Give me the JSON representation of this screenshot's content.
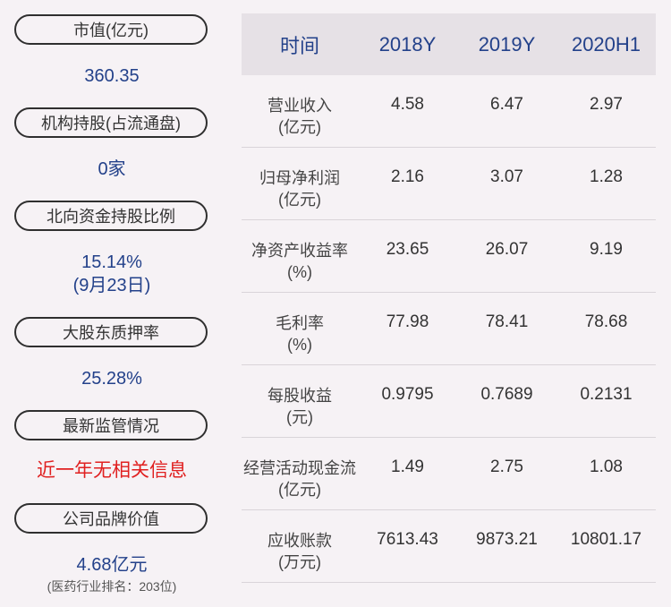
{
  "left_panel": {
    "items": [
      {
        "label": "市值(亿元)",
        "value": "360.35"
      },
      {
        "label": "机构持股(占流通盘)",
        "value": "0家"
      },
      {
        "label": "北向资金持股比例",
        "value": "15.14%",
        "value2": "(9月23日)"
      },
      {
        "label": "大股东质押率",
        "value": "25.28%"
      },
      {
        "label": "最新监管情况",
        "value": "近一年无相关信息"
      },
      {
        "label": "公司品牌价值",
        "value": "4.68亿元",
        "note": "(医药行业排名：203位)"
      }
    ]
  },
  "table": {
    "headers": [
      "时间",
      "2018Y",
      "2019Y",
      "2020H1"
    ],
    "rows": [
      {
        "label": "营业收入",
        "unit": "(亿元)",
        "values": [
          "4.58",
          "6.47",
          "2.97"
        ]
      },
      {
        "label": "归母净利润",
        "unit": "(亿元)",
        "values": [
          "2.16",
          "3.07",
          "1.28"
        ]
      },
      {
        "label": "净资产收益率",
        "unit": "(%)",
        "values": [
          "23.65",
          "26.07",
          "9.19"
        ]
      },
      {
        "label": "毛利率",
        "unit": "(%)",
        "values": [
          "77.98",
          "78.41",
          "78.68"
        ]
      },
      {
        "label": "每股收益",
        "unit": "(元)",
        "values": [
          "0.9795",
          "0.7689",
          "0.2131"
        ]
      },
      {
        "label": "经营活动现金流",
        "unit": "(亿元)",
        "values": [
          "1.49",
          "2.75",
          "1.08"
        ]
      },
      {
        "label": "应收账款",
        "unit": "(万元)",
        "values": [
          "7613.43",
          "9873.21",
          "10801.17"
        ]
      }
    ]
  },
  "colors": {
    "background": "#f6f2f5",
    "value_blue": "#23418a",
    "alert_red": "#e02020",
    "header_bg": "#e6e1e6"
  }
}
